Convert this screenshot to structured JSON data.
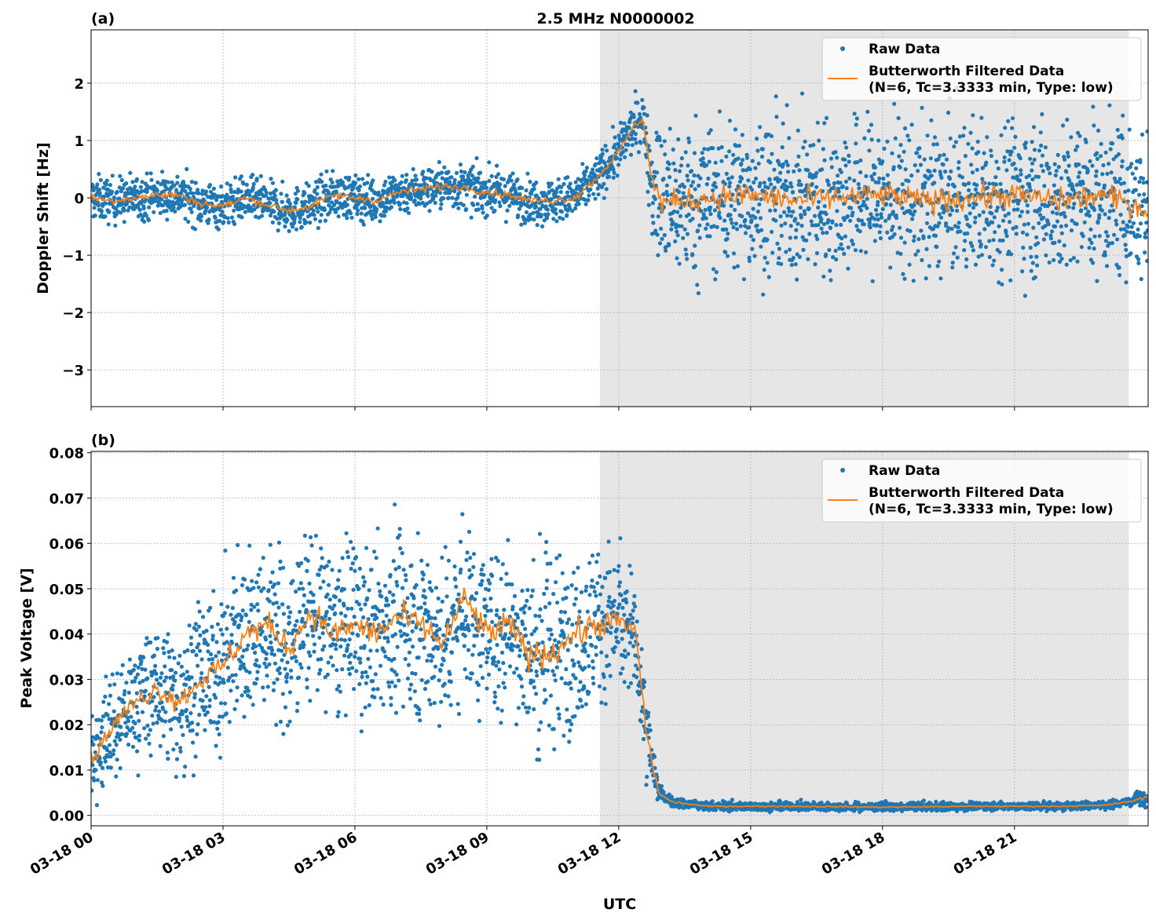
{
  "chart_data": [
    {
      "type": "scatter+line",
      "panel_label": "(a)",
      "title": "2.5 MHz N0000002",
      "xlabel": "",
      "ylabel": "Doppler Shift [Hz]",
      "xlim_hours": [
        0,
        24.04
      ],
      "ylim": [
        -3.64,
        2.93
      ],
      "yticks": [
        2,
        1,
        0,
        -1,
        -2,
        -3
      ],
      "ytick_labels": [
        "2",
        "1",
        "0",
        "−1",
        "−2",
        "−3"
      ],
      "grid": true,
      "shaded_region_utc": [
        "03-18 11:34",
        "03-18 23:36"
      ],
      "shaded_region_hours": [
        11.57,
        23.6
      ],
      "legend": {
        "position": "top-right",
        "entries": [
          "Raw Data",
          "Butterworth Filtered Data",
          "(N=6, Tc=3.3333 min, Type: low)"
        ]
      },
      "series": [
        {
          "name": "Raw Data",
          "style": "scatter",
          "color": "#1f77b4",
          "note_spread_hz": [
            [
              0,
              0.35
            ],
            [
              11.5,
              0.35
            ],
            [
              12.6,
              0.4
            ],
            [
              12.9,
              1.2
            ],
            [
              24,
              1.2
            ]
          ]
        },
        {
          "name": "Butterworth Filtered Data",
          "style": "line",
          "color": "#ff7f0e",
          "points": [
            [
              0,
              0
            ],
            [
              0.5,
              -0.05
            ],
            [
              1,
              0
            ],
            [
              1.5,
              0.05
            ],
            [
              2,
              0.05
            ],
            [
              2.5,
              -0.1
            ],
            [
              3,
              -0.15
            ],
            [
              3.5,
              0
            ],
            [
              4,
              -0.12
            ],
            [
              4.5,
              -0.22
            ],
            [
              5,
              -0.15
            ],
            [
              5.5,
              0.05
            ],
            [
              6,
              0
            ],
            [
              6.5,
              -0.05
            ],
            [
              7,
              0.1
            ],
            [
              7.5,
              0.15
            ],
            [
              8,
              0.2
            ],
            [
              8.5,
              0.18
            ],
            [
              9,
              0.1
            ],
            [
              9.5,
              0.05
            ],
            [
              10,
              -0.05
            ],
            [
              10.5,
              -0.05
            ],
            [
              11,
              0
            ],
            [
              11.5,
              0.35
            ],
            [
              12,
              0.8
            ],
            [
              12.3,
              1.2
            ],
            [
              12.55,
              1.4
            ],
            [
              12.75,
              0.3
            ],
            [
              13,
              -0.1
            ],
            [
              14,
              0
            ],
            [
              15,
              0.05
            ],
            [
              16,
              -0.05
            ],
            [
              17,
              0
            ],
            [
              18,
              0.05
            ],
            [
              19,
              -0.05
            ],
            [
              20,
              0
            ],
            [
              21,
              0.05
            ],
            [
              22,
              -0.05
            ],
            [
              23,
              0.05
            ],
            [
              24,
              -0.2
            ]
          ]
        }
      ]
    },
    {
      "type": "scatter+line",
      "panel_label": "(b)",
      "xlabel": "UTC",
      "ylabel": "Peak Voltage [V]",
      "xlim_hours": [
        0,
        24.04
      ],
      "ylim": [
        -0.0023,
        0.0803
      ],
      "yticks": [
        0,
        0.01,
        0.02,
        0.03,
        0.04,
        0.05,
        0.06,
        0.07,
        0.08
      ],
      "ytick_labels": [
        "0.00",
        "0.01",
        "0.02",
        "0.03",
        "0.04",
        "0.05",
        "0.06",
        "0.07",
        "0.08"
      ],
      "xticks_hours": [
        0,
        3,
        6,
        9,
        12,
        15,
        18,
        21
      ],
      "xtick_labels": [
        "03-18 00",
        "03-18 03",
        "03-18 06",
        "03-18 09",
        "03-18 12",
        "03-18 15",
        "03-18 18",
        "03-18 21"
      ],
      "grid": true,
      "shaded_region_hours": [
        11.57,
        23.6
      ],
      "legend": {
        "position": "top-right",
        "entries": [
          "Raw Data",
          "Butterworth Filtered Data",
          "(N=6, Tc=3.3333 min, Type: low)"
        ]
      },
      "series": [
        {
          "name": "Raw Data",
          "style": "scatter",
          "color": "#1f77b4",
          "note_spread_v": [
            [
              0,
              0.01
            ],
            [
              3,
              0.016
            ],
            [
              11,
              0.018
            ],
            [
              12.5,
              0.012
            ],
            [
              13,
              0.001
            ],
            [
              23.5,
              0.0008
            ],
            [
              24,
              0.002
            ]
          ]
        },
        {
          "name": "Butterworth Filtered Data",
          "style": "line",
          "color": "#ff7f0e",
          "points": [
            [
              0,
              0.012
            ],
            [
              0.5,
              0.02
            ],
            [
              1,
              0.025
            ],
            [
              1.5,
              0.028
            ],
            [
              2,
              0.025
            ],
            [
              2.5,
              0.03
            ],
            [
              3,
              0.033
            ],
            [
              3.5,
              0.04
            ],
            [
              4,
              0.042
            ],
            [
              4.5,
              0.037
            ],
            [
              5,
              0.045
            ],
            [
              5.5,
              0.04
            ],
            [
              6,
              0.042
            ],
            [
              6.5,
              0.04
            ],
            [
              7,
              0.044
            ],
            [
              7.5,
              0.042
            ],
            [
              8,
              0.038
            ],
            [
              8.5,
              0.048
            ],
            [
              9,
              0.04
            ],
            [
              9.5,
              0.042
            ],
            [
              10,
              0.035
            ],
            [
              10.5,
              0.036
            ],
            [
              11,
              0.04
            ],
            [
              11.5,
              0.042
            ],
            [
              12,
              0.043
            ],
            [
              12.4,
              0.04
            ],
            [
              12.6,
              0.02
            ],
            [
              12.9,
              0.005
            ],
            [
              13.2,
              0.003
            ],
            [
              14,
              0.002
            ],
            [
              16,
              0.002
            ],
            [
              18,
              0.0018
            ],
            [
              20,
              0.002
            ],
            [
              22,
              0.002
            ],
            [
              23,
              0.0022
            ],
            [
              23.6,
              0.003
            ],
            [
              24,
              0.004
            ]
          ]
        }
      ]
    }
  ]
}
